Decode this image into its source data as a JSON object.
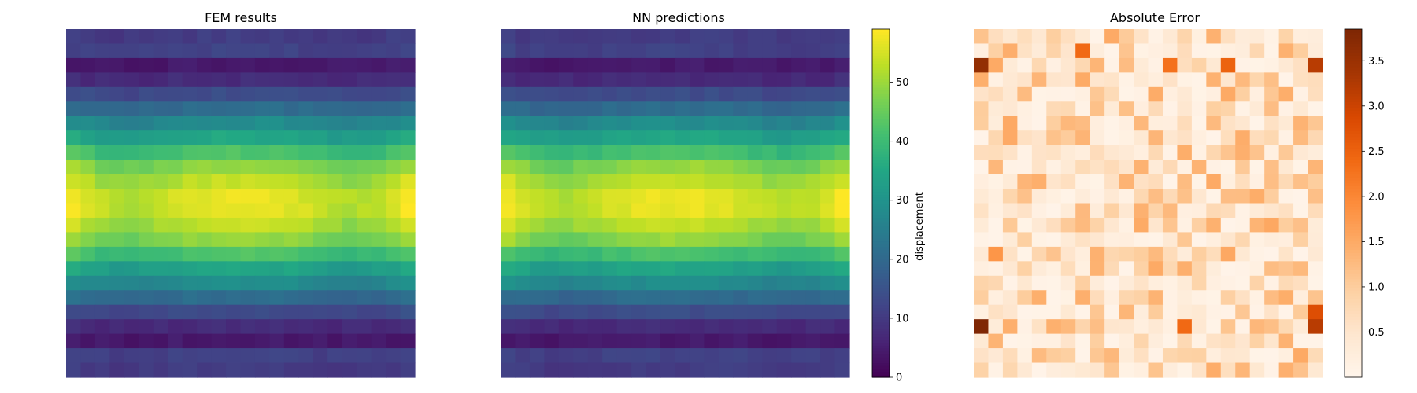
{
  "chart_data": [
    {
      "type": "heatmap",
      "title": "FEM results",
      "grid_size": [
        24,
        24
      ],
      "colormap": "viridis",
      "vmin": 0,
      "vmax": 59,
      "row_profile": [
        10,
        11,
        4,
        7,
        13,
        20,
        27,
        33,
        40,
        47,
        51,
        54,
        54,
        51,
        47,
        40,
        33,
        27,
        20,
        13,
        7,
        4,
        11,
        10
      ],
      "col_profile": [
        1.08,
        1.03,
        0.99,
        0.97,
        0.96,
        0.98,
        1.0,
        1.02,
        1.04,
        1.05,
        1.06,
        1.06,
        1.06,
        1.06,
        1.05,
        1.04,
        1.02,
        1.0,
        0.98,
        0.96,
        0.97,
        0.99,
        1.03,
        1.08
      ],
      "axis": "off"
    },
    {
      "type": "heatmap",
      "title": "NN predictions",
      "grid_size": [
        24,
        24
      ],
      "colormap": "viridis",
      "vmin": 0,
      "vmax": 59,
      "row_profile": [
        10,
        11,
        4,
        7,
        13,
        20,
        27,
        33,
        40,
        47,
        51,
        54,
        54,
        51,
        47,
        40,
        33,
        27,
        20,
        13,
        7,
        4,
        11,
        10
      ],
      "col_profile": [
        1.08,
        1.03,
        0.99,
        0.97,
        0.96,
        0.98,
        1.0,
        1.02,
        1.04,
        1.05,
        1.06,
        1.06,
        1.06,
        1.06,
        1.05,
        1.04,
        1.02,
        1.0,
        0.98,
        0.96,
        0.97,
        0.99,
        1.03,
        1.08
      ],
      "axis": "off",
      "colorbar": {
        "label": "displacement",
        "ticks": [
          0,
          10,
          20,
          30,
          40,
          50
        ],
        "range": [
          0,
          59
        ]
      }
    },
    {
      "type": "heatmap",
      "title": "Absolute Error",
      "grid_size": [
        24,
        24
      ],
      "colormap": "oranges",
      "vmin": 0,
      "vmax": 3.85,
      "axis": "off",
      "hot_spots": [
        {
          "row": 2,
          "col": 0,
          "value": 3.6
        },
        {
          "row": 2,
          "col": 23,
          "value": 3.2
        },
        {
          "row": 2,
          "col": 17,
          "value": 2.5
        },
        {
          "row": 2,
          "col": 13,
          "value": 2.3
        },
        {
          "row": 1,
          "col": 7,
          "value": 2.4
        },
        {
          "row": 20,
          "col": 0,
          "value": 3.85
        },
        {
          "row": 20,
          "col": 23,
          "value": 3.2
        },
        {
          "row": 20,
          "col": 14,
          "value": 2.4
        },
        {
          "row": 19,
          "col": 23,
          "value": 2.8
        },
        {
          "row": 15,
          "col": 1,
          "value": 1.8
        }
      ],
      "colorbar": {
        "label": "",
        "ticks": [
          0.5,
          1.0,
          1.5,
          2.0,
          2.5,
          3.0,
          3.5
        ],
        "tick_labels": [
          "0.5",
          "1.0",
          "1.5",
          "2.0",
          "2.5",
          "3.0",
          "3.5"
        ],
        "range": [
          0,
          3.85
        ]
      }
    }
  ]
}
